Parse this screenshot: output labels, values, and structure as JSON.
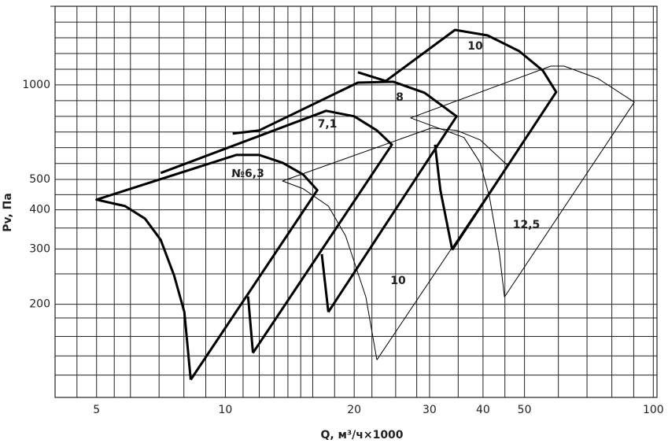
{
  "chart_data": {
    "type": "line",
    "x_label": "Q, м³/ч×1000",
    "y_label": "Pv, Па",
    "log_x": true,
    "log_y": true,
    "grid": true,
    "color": "#000000",
    "xlim": [
      4,
      102
    ],
    "ylim": [
      101,
      1780
    ],
    "xticks": [
      5,
      10,
      20,
      30,
      40,
      50,
      100
    ],
    "yticks": [
      200,
      300,
      400,
      500,
      1000
    ],
    "xgrid": [
      4.5,
      5.5,
      6,
      7,
      8,
      9,
      11,
      12,
      13,
      14,
      15,
      16,
      18,
      22,
      25,
      28,
      35,
      45,
      60,
      70,
      80,
      90
    ],
    "ygrid": [
      119,
      137,
      158,
      181,
      250,
      350,
      447,
      562,
      631,
      708,
      794,
      891,
      1122,
      1259,
      1413,
      1585
    ],
    "series": [
      {
        "name": "№6,3",
        "line_width": 3,
        "x": [
          8.3,
          8.02,
          7.59,
          7.06,
          6.49,
          5.83,
          5,
          10.6,
          12.0,
          13.6,
          15.2,
          16.4,
          8.3,
          null,
          11.3,
          11.6
        ],
        "values": [
          115,
          189,
          247,
          321,
          375,
          411,
          431,
          598,
          598,
          565,
          518,
          462,
          115,
          null,
          212,
          140
        ]
      },
      {
        "name": "7,1",
        "line_width": 3,
        "x": [
          7.06,
          17.2,
          20.0,
          22.6,
          24.5,
          11.6,
          null,
          16.8,
          17.4
        ],
        "values": [
          524,
          827,
          794,
          716,
          645,
          140,
          null,
          289,
          189
        ]
      },
      {
        "name": "8",
        "line_width": 3,
        "x": [
          10.4,
          12.0,
          20.4,
          24.7,
          29.2,
          34.7,
          17.4,
          null,
          30.9,
          31.8,
          33.9
        ],
        "values": [
          700,
          716,
          1017,
          1023,
          944,
          794,
          189,
          null,
          645,
          462,
          298
        ]
      },
      {
        "name": "10",
        "line_width": 3,
        "x": [
          20.4,
          23.7,
          34.4,
          41.0,
          48.6,
          55.2,
          59.3,
          33.9
        ],
        "values": [
          1097,
          1029,
          1497,
          1438,
          1281,
          1110,
          949,
          298
        ]
      },
      {
        "name": "10",
        "line_width": 1,
        "x": [
          22.6,
          21.3,
          19.1,
          17.4,
          15.2,
          13.6,
          30.3,
          34.7,
          39.4,
          45.6,
          22.6
        ],
        "values": [
          133,
          211,
          330,
          411,
          467,
          494,
          729,
          716,
          668,
          555,
          133
        ]
      },
      {
        "name": "12,5",
        "line_width": 1,
        "x": [
          44.9,
          43.7,
          41.4,
          39.4,
          36.1,
          27.1,
          57.6,
          61.9,
          74.3,
          90.3,
          44.9
        ],
        "values": [
          211,
          289,
          441,
          565,
          680,
          785,
          1148,
          1148,
          1047,
          881,
          211
        ]
      }
    ]
  }
}
